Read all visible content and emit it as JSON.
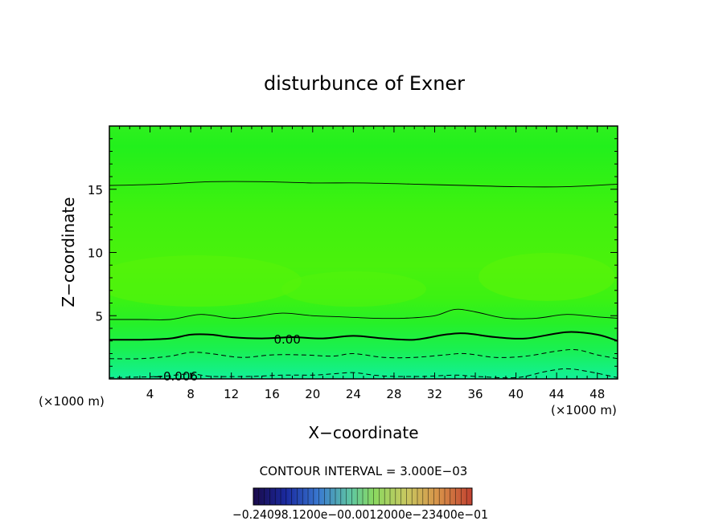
{
  "chart_data": {
    "type": "contour",
    "title": "disturbunce of Exner",
    "xlabel": "X−coordinate",
    "ylabel": "Z−coordinate",
    "x_unit_left": "(×1000 m)",
    "x_unit_right": "(×1000 m)",
    "xlim": [
      0,
      50
    ],
    "ylim": [
      0,
      20
    ],
    "x_ticks": [
      4,
      8,
      12,
      16,
      20,
      24,
      28,
      32,
      36,
      40,
      44,
      48
    ],
    "x_tick_labels": [
      "4",
      "8",
      "12",
      "16",
      "20",
      "24",
      "28",
      "32",
      "36",
      "40",
      "44",
      "48"
    ],
    "y_ticks": [
      5,
      10,
      15
    ],
    "y_tick_labels": [
      "5",
      "10",
      "15"
    ],
    "contour_interval_text": "CONTOUR INTERVAL = 3.000E−03",
    "contour_labels": [
      {
        "text": "0.00",
        "x": 17.5,
        "y": 3.1
      },
      {
        "text": "−0.006",
        "x": 6.5,
        "y": 0.2
      }
    ],
    "contours": [
      {
        "level": 0.006,
        "style": "solid-thin",
        "points": [
          [
            0,
            15.3
          ],
          [
            5,
            15.4
          ],
          [
            10,
            15.6
          ],
          [
            15,
            15.6
          ],
          [
            20,
            15.5
          ],
          [
            25,
            15.5
          ],
          [
            30,
            15.4
          ],
          [
            35,
            15.3
          ],
          [
            40,
            15.2
          ],
          [
            45,
            15.2
          ],
          [
            50,
            15.4
          ]
        ]
      },
      {
        "level": 0.003,
        "style": "solid-thin",
        "points": [
          [
            0,
            4.7
          ],
          [
            3,
            4.7
          ],
          [
            6,
            4.7
          ],
          [
            9,
            5.1
          ],
          [
            12,
            4.8
          ],
          [
            14,
            4.9
          ],
          [
            17,
            5.2
          ],
          [
            20,
            5.0
          ],
          [
            23,
            4.9
          ],
          [
            26,
            4.8
          ],
          [
            29,
            4.8
          ],
          [
            32,
            5.0
          ],
          [
            34,
            5.5
          ],
          [
            36,
            5.3
          ],
          [
            39,
            4.8
          ],
          [
            42,
            4.8
          ],
          [
            45,
            5.1
          ],
          [
            48,
            4.9
          ],
          [
            50,
            4.8
          ]
        ]
      },
      {
        "level": 0.0,
        "style": "solid-thick",
        "points": [
          [
            0,
            3.1
          ],
          [
            3,
            3.1
          ],
          [
            6,
            3.2
          ],
          [
            8,
            3.5
          ],
          [
            10,
            3.5
          ],
          [
            12,
            3.3
          ],
          [
            15,
            3.2
          ],
          [
            18,
            3.3
          ],
          [
            21,
            3.2
          ],
          [
            24,
            3.4
          ],
          [
            27,
            3.2
          ],
          [
            30,
            3.1
          ],
          [
            33,
            3.5
          ],
          [
            35,
            3.6
          ],
          [
            38,
            3.3
          ],
          [
            41,
            3.2
          ],
          [
            45,
            3.7
          ],
          [
            48,
            3.5
          ],
          [
            50,
            3.0
          ]
        ]
      },
      {
        "level": -0.003,
        "style": "dashed",
        "points": [
          [
            0,
            1.6
          ],
          [
            3,
            1.6
          ],
          [
            6,
            1.8
          ],
          [
            8,
            2.1
          ],
          [
            10,
            2.0
          ],
          [
            13,
            1.7
          ],
          [
            16,
            1.9
          ],
          [
            19,
            1.9
          ],
          [
            22,
            1.8
          ],
          [
            24,
            2.0
          ],
          [
            27,
            1.7
          ],
          [
            30,
            1.7
          ],
          [
            33,
            1.9
          ],
          [
            35,
            2.0
          ],
          [
            38,
            1.7
          ],
          [
            41,
            1.8
          ],
          [
            44,
            2.2
          ],
          [
            46,
            2.3
          ],
          [
            48,
            1.9
          ],
          [
            50,
            1.6
          ]
        ]
      },
      {
        "level": -0.006,
        "style": "dashed",
        "points": [
          [
            0,
            0.1
          ],
          [
            5,
            0.2
          ],
          [
            8,
            0.4
          ],
          [
            10,
            0.2
          ],
          [
            14,
            0.2
          ],
          [
            17,
            0.3
          ],
          [
            20,
            0.3
          ],
          [
            22,
            0.4
          ],
          [
            24,
            0.5
          ],
          [
            26,
            0.3
          ],
          [
            28,
            0.2
          ],
          [
            31,
            0.2
          ],
          [
            34,
            0.3
          ],
          [
            36,
            0.2
          ],
          [
            40,
            0.1
          ],
          [
            43,
            0.6
          ],
          [
            45,
            0.8
          ],
          [
            47,
            0.6
          ],
          [
            50,
            0.1
          ]
        ]
      }
    ],
    "colorbar": {
      "tick_labels": [
        "−0.24",
        "−0.1200e−01",
        "0.000",
        "0.1200e−01",
        "0.2400e−01"
      ],
      "overlap_text": "−0.24098.1200e−00.0012000e−23400e−01"
    },
    "colors": {
      "field_top": "#2ff01e",
      "field_mid": "#45f20a",
      "field_low": "#1cf04a",
      "field_bottom": "#12f09a"
    }
  }
}
